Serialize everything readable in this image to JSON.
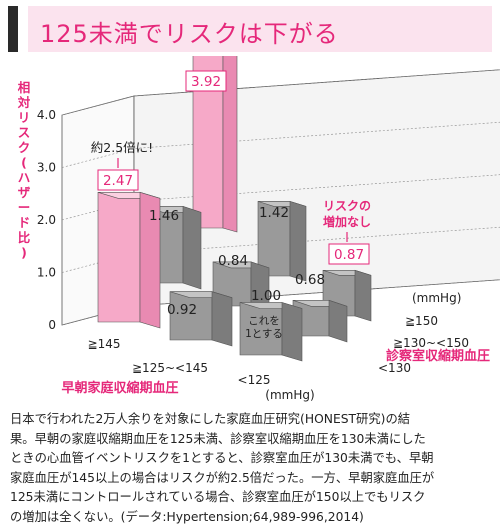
{
  "title": "125未満でリスクは下がる",
  "chart_data": {
    "type": "bar3d",
    "ylabel": "相対リスク(ハザード比)",
    "yticks": [
      "0",
      "1.0",
      "2.0",
      "3.0",
      "4.0"
    ],
    "ylim": [
      0,
      4.0
    ],
    "morning_axis": {
      "label": "早朝家庭収縮期血圧",
      "unit": "(mmHg)",
      "categories": [
        "≧145",
        "≧125~<145",
        "<125"
      ]
    },
    "clinic_axis": {
      "label": "診察室収縮期血圧",
      "unit": "(mmHg)",
      "categories": [
        "≧150",
        "≧130~<150",
        "<130"
      ]
    },
    "bars": [
      {
        "morning": "≧145",
        "clinic": "≧150",
        "value": 3.92,
        "label": "3.92",
        "highlight": true
      },
      {
        "morning": "≧145",
        "clinic": "≧130~<150",
        "value": 1.46,
        "label": "1.46",
        "highlight": false
      },
      {
        "morning": "≧145",
        "clinic": "<130",
        "value": 2.47,
        "label": "2.47",
        "highlight": true
      },
      {
        "morning": "≧125~<145",
        "clinic": "≧150",
        "value": 1.42,
        "label": "1.42",
        "highlight": false
      },
      {
        "morning": "≧125~<145",
        "clinic": "≧130~<150",
        "value": 0.84,
        "label": "0.84",
        "highlight": false
      },
      {
        "morning": "≧125~<145",
        "clinic": "<130",
        "value": 0.92,
        "label": "0.92",
        "highlight": false
      },
      {
        "morning": "<125",
        "clinic": "≧150",
        "value": 0.87,
        "label": "0.87",
        "highlight": false
      },
      {
        "morning": "<125",
        "clinic": "≧130~<150",
        "value": 0.68,
        "label": "0.68",
        "highlight": false
      },
      {
        "morning": "<125",
        "clinic": "<130",
        "value": 1.0,
        "label": "1.00",
        "highlight": false
      }
    ],
    "annotations": {
      "about_2_5": "約2.5倍に!",
      "no_increase_1": "リスクの",
      "no_increase_2": "増加なし",
      "reference_1": "これを",
      "reference_2": "1とする"
    },
    "colors": {
      "highlight_front": "#f6a9c8",
      "highlight_top": "#fbd0e1",
      "highlight_side": "#e98ab2",
      "gray_front": "#9a9a9a",
      "gray_top": "#c4c4c4",
      "gray_side": "#7c7c7c",
      "accent": "#e5287a"
    }
  },
  "caption_lines": [
    "日本で行われた2万人余りを対象にした家庭血圧研究(HONEST研究)の結",
    "果。早朝の家庭収縮期血圧を125未満、診察室収縮期血圧を130未満にした",
    "ときの心血管イベントリスクを1とすると、診察室血圧が130未満でも、早朝",
    "家庭血圧が145以上の場合はリスクが約2.5倍だった。一方、早朝家庭血圧が",
    "125未満にコントロールされている場合、診察室血圧が150以上でもリスク",
    "の増加は全くない。(データ:Hypertension;64,989-996,2014)"
  ]
}
